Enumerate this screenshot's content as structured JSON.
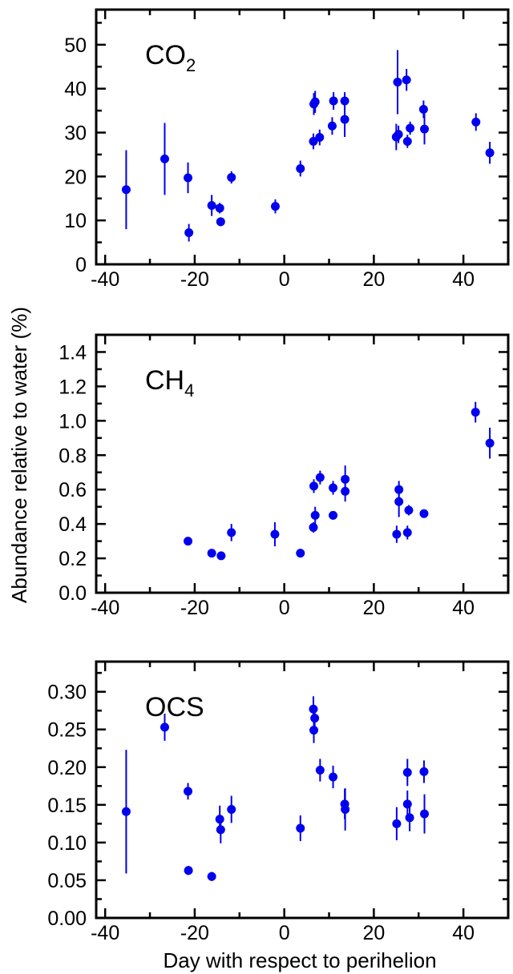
{
  "chart_data": {
    "type": "scatter",
    "ylabel": "Abundance relative to water (%)",
    "xlabel": "Day with respect to perihelion",
    "marker_color": "#0000ee",
    "panels": [
      {
        "name": "CO2",
        "title_main": "CO",
        "title_sub": "2",
        "xlim": [
          -42,
          50
        ],
        "ylim": [
          0,
          58
        ],
        "xticks": [
          -40,
          -20,
          0,
          20,
          40
        ],
        "yticks": [
          0,
          10,
          20,
          30,
          40,
          50
        ],
        "points": [
          {
            "x": -35.3,
            "y": 17.0,
            "err": 9.0
          },
          {
            "x": -26.7,
            "y": 24.0,
            "err": 8.2
          },
          {
            "x": -21.5,
            "y": 19.7,
            "err": 3.5
          },
          {
            "x": -21.3,
            "y": 7.2,
            "err": 2.0
          },
          {
            "x": -16.2,
            "y": 13.4,
            "err": 2.4
          },
          {
            "x": -14.4,
            "y": 12.8,
            "err": 1.2
          },
          {
            "x": -14.2,
            "y": 9.7,
            "err": 1.0
          },
          {
            "x": -11.8,
            "y": 19.8,
            "err": 1.4
          },
          {
            "x": -2.0,
            "y": 13.2,
            "err": 1.6
          },
          {
            "x": 3.6,
            "y": 21.8,
            "err": 1.8
          },
          {
            "x": 6.6,
            "y": 36.5,
            "err": 2.5
          },
          {
            "x": 6.9,
            "y": 37.0,
            "err": 2.5
          },
          {
            "x": 6.5,
            "y": 28.0,
            "err": 1.8
          },
          {
            "x": 7.9,
            "y": 28.9,
            "err": 1.8
          },
          {
            "x": 11.0,
            "y": 37.2,
            "err": 2.0
          },
          {
            "x": 10.7,
            "y": 31.5,
            "err": 2.0
          },
          {
            "x": 13.5,
            "y": 37.2,
            "err": 2.0
          },
          {
            "x": 13.5,
            "y": 33.0,
            "err": 4.0
          },
          {
            "x": 25.0,
            "y": 29.0,
            "err": 3.0
          },
          {
            "x": 25.3,
            "y": 41.5,
            "err": 7.3
          },
          {
            "x": 25.5,
            "y": 29.6,
            "err": 2.0
          },
          {
            "x": 27.3,
            "y": 42.0,
            "err": 2.5
          },
          {
            "x": 27.5,
            "y": 28.0,
            "err": 1.5
          },
          {
            "x": 28.1,
            "y": 31.0,
            "err": 1.5
          },
          {
            "x": 31.1,
            "y": 35.3,
            "err": 2.0
          },
          {
            "x": 31.3,
            "y": 30.8,
            "err": 3.5
          },
          {
            "x": 42.8,
            "y": 32.4,
            "err": 2.0
          },
          {
            "x": 45.9,
            "y": 25.4,
            "err": 2.5
          }
        ]
      },
      {
        "name": "CH4",
        "title_main": "CH",
        "title_sub": "4",
        "xlim": [
          -42,
          50
        ],
        "ylim": [
          0,
          1.5
        ],
        "xticks": [
          -40,
          -20,
          0,
          20,
          40
        ],
        "yticks": [
          "0.0",
          "0.2",
          "0.4",
          "0.6",
          "0.8",
          "1.0",
          "1.2",
          "1.4"
        ],
        "points": [
          {
            "x": -21.5,
            "y": 0.3,
            "err": 0.015
          },
          {
            "x": -16.2,
            "y": 0.23,
            "err": 0.015
          },
          {
            "x": -14.1,
            "y": 0.215,
            "err": 0.015
          },
          {
            "x": -11.8,
            "y": 0.35,
            "err": 0.05
          },
          {
            "x": -2.1,
            "y": 0.34,
            "err": 0.07
          },
          {
            "x": 3.6,
            "y": 0.23,
            "err": 0.025
          },
          {
            "x": 6.6,
            "y": 0.62,
            "err": 0.04
          },
          {
            "x": 6.9,
            "y": 0.45,
            "err": 0.05
          },
          {
            "x": 6.5,
            "y": 0.38,
            "err": 0.03
          },
          {
            "x": 8.0,
            "y": 0.67,
            "err": 0.04
          },
          {
            "x": 10.9,
            "y": 0.61,
            "err": 0.04
          },
          {
            "x": 10.9,
            "y": 0.45,
            "err": 0.025
          },
          {
            "x": 13.6,
            "y": 0.66,
            "err": 0.08
          },
          {
            "x": 13.6,
            "y": 0.59,
            "err": 0.06
          },
          {
            "x": 25.1,
            "y": 0.34,
            "err": 0.05
          },
          {
            "x": 25.6,
            "y": 0.6,
            "err": 0.05
          },
          {
            "x": 25.6,
            "y": 0.53,
            "err": 0.09
          },
          {
            "x": 27.8,
            "y": 0.48,
            "err": 0.03
          },
          {
            "x": 27.5,
            "y": 0.35,
            "err": 0.04
          },
          {
            "x": 31.2,
            "y": 0.46,
            "err": 0.02
          },
          {
            "x": 42.7,
            "y": 1.05,
            "err": 0.06
          },
          {
            "x": 45.9,
            "y": 0.87,
            "err": 0.09
          }
        ]
      },
      {
        "name": "OCS",
        "title_main": "OCS",
        "title_sub": "",
        "xlim": [
          -42,
          50
        ],
        "ylim": [
          0,
          0.34
        ],
        "xticks": [
          -40,
          -20,
          0,
          20,
          40
        ],
        "yticks": [
          "0.00",
          "0.05",
          "0.10",
          "0.15",
          "0.20",
          "0.25",
          "0.30"
        ],
        "points": [
          {
            "x": -35.3,
            "y": 0.141,
            "err": 0.082
          },
          {
            "x": -26.7,
            "y": 0.253,
            "err": 0.018
          },
          {
            "x": -21.5,
            "y": 0.168,
            "err": 0.011
          },
          {
            "x": -21.4,
            "y": 0.063,
            "err": 0.006
          },
          {
            "x": -16.2,
            "y": 0.055,
            "err": 0.006
          },
          {
            "x": -14.4,
            "y": 0.131,
            "err": 0.018
          },
          {
            "x": -14.2,
            "y": 0.117,
            "err": 0.018
          },
          {
            "x": -11.8,
            "y": 0.144,
            "err": 0.018
          },
          {
            "x": 3.6,
            "y": 0.119,
            "err": 0.017
          },
          {
            "x": 6.5,
            "y": 0.277,
            "err": 0.017
          },
          {
            "x": 6.8,
            "y": 0.265,
            "err": 0.017
          },
          {
            "x": 6.6,
            "y": 0.249,
            "err": 0.017
          },
          {
            "x": 8.0,
            "y": 0.196,
            "err": 0.015
          },
          {
            "x": 10.9,
            "y": 0.187,
            "err": 0.015
          },
          {
            "x": 13.5,
            "y": 0.151,
            "err": 0.02
          },
          {
            "x": 13.6,
            "y": 0.144,
            "err": 0.028
          },
          {
            "x": 25.1,
            "y": 0.125,
            "err": 0.022
          },
          {
            "x": 27.5,
            "y": 0.193,
            "err": 0.018
          },
          {
            "x": 27.5,
            "y": 0.151,
            "err": 0.018
          },
          {
            "x": 28.0,
            "y": 0.133,
            "err": 0.018
          },
          {
            "x": 31.2,
            "y": 0.194,
            "err": 0.015
          },
          {
            "x": 31.3,
            "y": 0.138,
            "err": 0.026
          }
        ]
      }
    ]
  }
}
